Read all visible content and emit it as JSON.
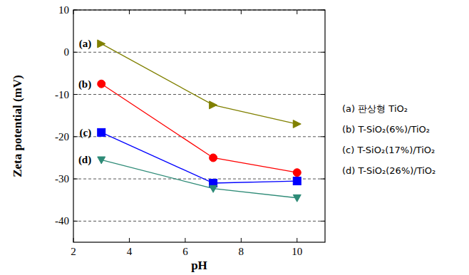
{
  "chart_data": {
    "type": "line",
    "x_label": "pH",
    "y_label": "Zeta potential (mV)",
    "x": [
      3,
      7,
      10
    ],
    "xlim": [
      2,
      11
    ],
    "xticks": [
      2,
      4,
      6,
      8,
      10
    ],
    "ylim": [
      -45,
      10
    ],
    "yticks": [
      -40,
      -30,
      -20,
      -10,
      0,
      10
    ],
    "grid": true,
    "legend": "right",
    "annotations": [
      "(a)",
      "(b)",
      "(c)",
      "(d)"
    ],
    "series": [
      {
        "name": "(a) 판상형 TiO₂",
        "color": "#808000",
        "marker": "triangle-right",
        "values": [
          2,
          -12.5,
          -17
        ]
      },
      {
        "name": "(b) T-SiO₂(6%)/TiO₂",
        "color": "#ff0000",
        "marker": "circle",
        "values": [
          -7.5,
          -25,
          -28.5
        ]
      },
      {
        "name": "(c) T-SiO₂(17%)/TiO₂",
        "color": "#0000ff",
        "marker": "square",
        "values": [
          -19,
          -31,
          -30.5
        ]
      },
      {
        "name": "(d) T-SiO₂(26%)/TiO₂",
        "color": "#2e8b77",
        "marker": "triangle-down",
        "values": [
          -25.5,
          -32.3,
          -34.5
        ]
      }
    ]
  }
}
